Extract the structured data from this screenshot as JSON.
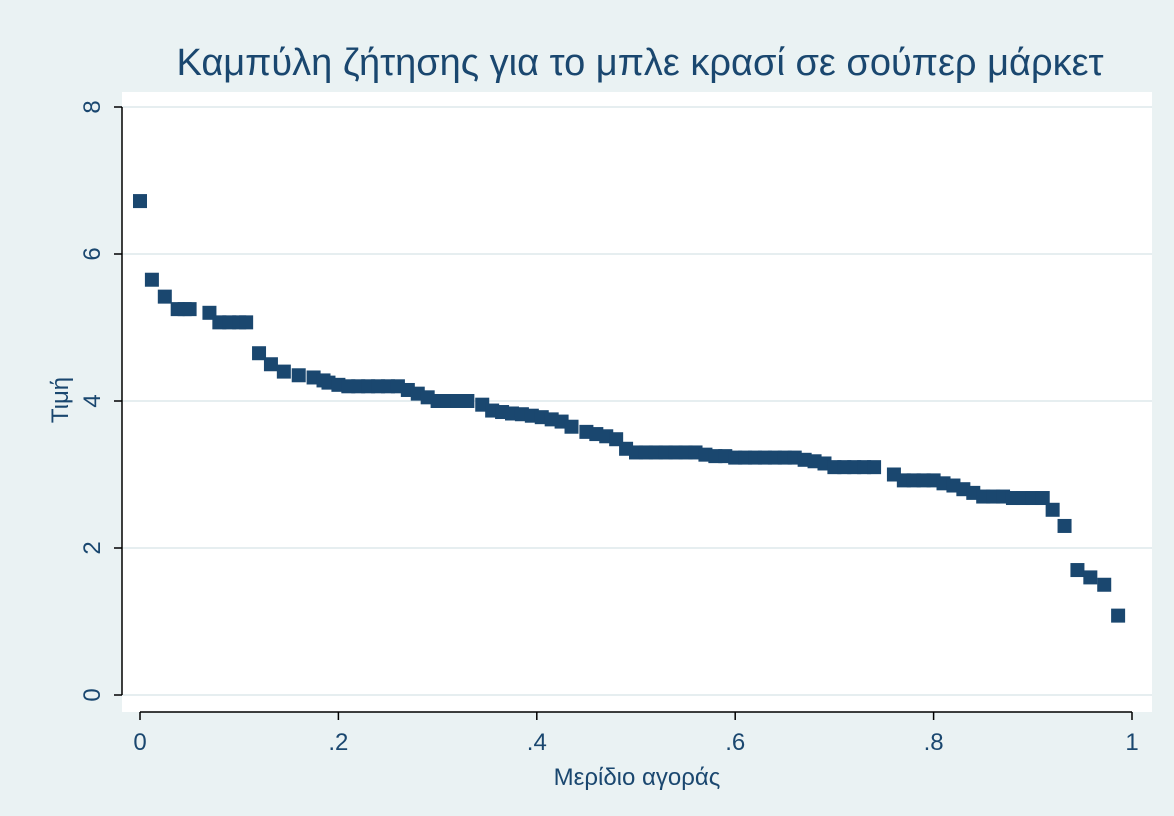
{
  "chart_data": {
    "type": "scatter",
    "title": "Καμπύλη ζήτησης για το μπλε κρασί σε σούπερ μάρκετ",
    "xlabel": "Μερίδιο αγοράς",
    "ylabel": "Τιμή",
    "xlim": [
      0,
      1
    ],
    "ylim": [
      0,
      8
    ],
    "x_ticks": [
      0,
      0.2,
      0.4,
      0.6,
      0.8,
      1
    ],
    "x_tick_labels": [
      "0",
      ".2",
      ".4",
      ".6",
      ".8",
      "1"
    ],
    "y_ticks": [
      0,
      2,
      4,
      6,
      8
    ],
    "y_tick_labels": [
      "0",
      "2",
      "4",
      "6",
      "8"
    ],
    "grid": "horizontal",
    "legend": "none",
    "colors": {
      "background": "#eaf2f3",
      "plot_area": "#ffffff",
      "grid": "#e6eef0",
      "marker": "#1a476f",
      "text": "#1a476f"
    },
    "series": [
      {
        "x": [
          0.0,
          0.012,
          0.025,
          0.038,
          0.045,
          0.05,
          0.07,
          0.08,
          0.09,
          0.1,
          0.107,
          0.12,
          0.132,
          0.145,
          0.16,
          0.175,
          0.185,
          0.19,
          0.2,
          0.21,
          0.22,
          0.23,
          0.24,
          0.25,
          0.26,
          0.27,
          0.28,
          0.29,
          0.3,
          0.31,
          0.32,
          0.33,
          0.345,
          0.355,
          0.365,
          0.375,
          0.385,
          0.395,
          0.405,
          0.415,
          0.425,
          0.435,
          0.45,
          0.46,
          0.47,
          0.48,
          0.49,
          0.5,
          0.51,
          0.52,
          0.53,
          0.54,
          0.55,
          0.56,
          0.57,
          0.58,
          0.59,
          0.6,
          0.61,
          0.62,
          0.63,
          0.64,
          0.65,
          0.66,
          0.67,
          0.68,
          0.69,
          0.7,
          0.71,
          0.72,
          0.73,
          0.74,
          0.76,
          0.77,
          0.78,
          0.79,
          0.8,
          0.81,
          0.82,
          0.83,
          0.84,
          0.85,
          0.86,
          0.87,
          0.88,
          0.89,
          0.9,
          0.91,
          0.92,
          0.932,
          0.945,
          0.958,
          0.972,
          0.986
        ],
        "y": [
          6.72,
          5.65,
          5.42,
          5.25,
          5.25,
          5.25,
          5.2,
          5.07,
          5.07,
          5.07,
          5.07,
          4.65,
          4.5,
          4.4,
          4.35,
          4.32,
          4.28,
          4.25,
          4.22,
          4.2,
          4.2,
          4.2,
          4.2,
          4.2,
          4.2,
          4.15,
          4.1,
          4.05,
          4.0,
          4.0,
          4.0,
          4.0,
          3.95,
          3.87,
          3.85,
          3.83,
          3.82,
          3.8,
          3.78,
          3.75,
          3.72,
          3.65,
          3.58,
          3.55,
          3.52,
          3.48,
          3.35,
          3.3,
          3.3,
          3.3,
          3.3,
          3.3,
          3.3,
          3.3,
          3.27,
          3.25,
          3.25,
          3.23,
          3.23,
          3.23,
          3.23,
          3.23,
          3.23,
          3.23,
          3.2,
          3.18,
          3.15,
          3.1,
          3.1,
          3.1,
          3.1,
          3.1,
          3.0,
          2.92,
          2.92,
          2.92,
          2.92,
          2.88,
          2.85,
          2.8,
          2.75,
          2.7,
          2.7,
          2.7,
          2.68,
          2.68,
          2.68,
          2.68,
          2.52,
          2.3,
          1.7,
          1.6,
          1.5,
          1.08
        ]
      }
    ]
  }
}
